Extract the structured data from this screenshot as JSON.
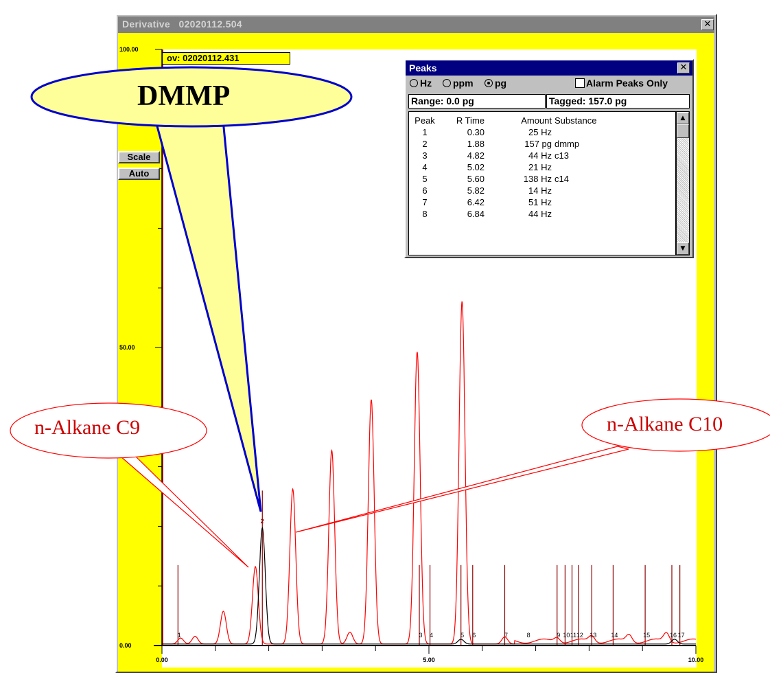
{
  "window": {
    "title": "Derivative   02020112.504",
    "close_glyph": "✕"
  },
  "scale_buttons": {
    "scale": "Scale",
    "auto": "Auto"
  },
  "overlay_label": "ov: 02020112.431",
  "peaks_window": {
    "title": "Peaks",
    "close_glyph": "✕",
    "units": [
      {
        "label": "Hz",
        "selected": false
      },
      {
        "label": "ppm",
        "selected": false
      },
      {
        "label": "pg",
        "selected": true
      }
    ],
    "alarm_label": "Alarm Peaks Only",
    "range": "Range: 0.0 pg",
    "tagged": "Tagged: 157.0 pg",
    "columns": [
      "Peak",
      "R Time",
      "Amount",
      "Substance"
    ],
    "rows": [
      [
        "1",
        "0.30",
        "25 Hz",
        ""
      ],
      [
        "2",
        "1.88",
        "157 pg",
        "dmmp"
      ],
      [
        "3",
        "4.82",
        "44 Hz",
        "c13"
      ],
      [
        "4",
        "5.02",
        "21 Hz",
        ""
      ],
      [
        "5",
        "5.60",
        "138 Hz",
        "c14"
      ],
      [
        "6",
        "5.82",
        "14 Hz",
        ""
      ],
      [
        "7",
        "6.42",
        "51 Hz",
        ""
      ],
      [
        "8",
        "6.84",
        "44 Hz",
        ""
      ]
    ]
  },
  "callouts": {
    "dmmp": "DMMP",
    "c9": "n-Alkane C9",
    "c10": "n-Alkane C10"
  },
  "colors": {
    "yellow": "#ffff00",
    "red": "#ff0000",
    "dark_red": "#8b0000",
    "blue": "#0000cc",
    "bubble": "#ffff99"
  },
  "chart_data": {
    "type": "line",
    "xlim": [
      0,
      10
    ],
    "ylim": [
      0,
      100
    ],
    "x_ticks": [
      "0.00",
      "5.00",
      "10.00"
    ],
    "y_ticks": [
      "0.00",
      "50.00",
      "100.00"
    ],
    "series": [
      {
        "color": "red",
        "peaks": [
          {
            "x": 0.35,
            "y": 1.0
          },
          {
            "x": 0.62,
            "y": 1.3
          },
          {
            "x": 1.15,
            "y": 5.5
          },
          {
            "x": 1.75,
            "y": 13.0
          },
          {
            "x": 2.45,
            "y": 26.0
          },
          {
            "x": 3.18,
            "y": 32.5
          },
          {
            "x": 3.52,
            "y": 2.0
          },
          {
            "x": 3.92,
            "y": 41.0
          },
          {
            "x": 4.78,
            "y": 49.0
          },
          {
            "x": 5.62,
            "y": 57.5
          },
          {
            "x": 6.42,
            "y": 1.2
          },
          {
            "x": 7.4,
            "y": 0.8
          },
          {
            "x": 8.05,
            "y": 1.0
          },
          {
            "x": 8.75,
            "y": 1.2
          },
          {
            "x": 9.45,
            "y": 1.5
          }
        ]
      },
      {
        "color": "black",
        "peaks": [
          {
            "x": 1.88,
            "y": 19.5
          },
          {
            "x": 5.6,
            "y": 0.8
          },
          {
            "x": 9.6,
            "y": 0.8
          }
        ]
      }
    ],
    "peak_markers": [
      {
        "label": "1",
        "x": 0.3,
        "h": 13.5
      },
      {
        "label": "2",
        "x": 1.88,
        "h": 26.0
      },
      {
        "label": "3",
        "x": 4.82,
        "h": 13.5
      },
      {
        "label": "4",
        "x": 5.02,
        "h": 13.5
      },
      {
        "label": "5",
        "x": 5.6,
        "h": 13.5
      },
      {
        "label": "6",
        "x": 5.82,
        "h": 13.5
      },
      {
        "label": "7",
        "x": 6.42,
        "h": 13.5
      },
      {
        "label": "8",
        "x": 6.84,
        "h": 0
      },
      {
        "label": "9",
        "x": 7.4,
        "h": 13.5
      },
      {
        "label": "10",
        "x": 7.55,
        "h": 13.5
      },
      {
        "label": "11",
        "x": 7.68,
        "h": 13.5
      },
      {
        "label": "12",
        "x": 7.8,
        "h": 13.5
      },
      {
        "label": "13",
        "x": 8.05,
        "h": 13.5
      },
      {
        "label": "14",
        "x": 8.45,
        "h": 13.5
      },
      {
        "label": "15",
        "x": 9.05,
        "h": 13.5
      },
      {
        "label": "16",
        "x": 9.55,
        "h": 13.5
      },
      {
        "label": "17",
        "x": 9.7,
        "h": 13.5
      }
    ]
  }
}
